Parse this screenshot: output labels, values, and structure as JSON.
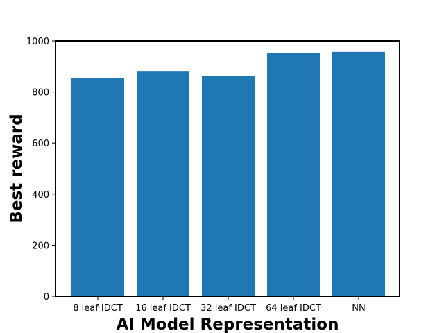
{
  "chart_data": {
    "type": "bar",
    "categories": [
      "8 leaf IDCT",
      "16 leaf IDCT",
      "32 leaf IDCT",
      "64 leaf IDCT",
      "NN"
    ],
    "values": [
      855,
      880,
      862,
      953,
      957
    ],
    "title": "",
    "xlabel": "AI Model Representation",
    "ylabel": "Best reward",
    "ylim": [
      0,
      1000
    ],
    "yticks": [
      0,
      200,
      400,
      600,
      800,
      1000
    ],
    "grid": false,
    "legend": "none",
    "bar_color": "#1f77b4"
  }
}
